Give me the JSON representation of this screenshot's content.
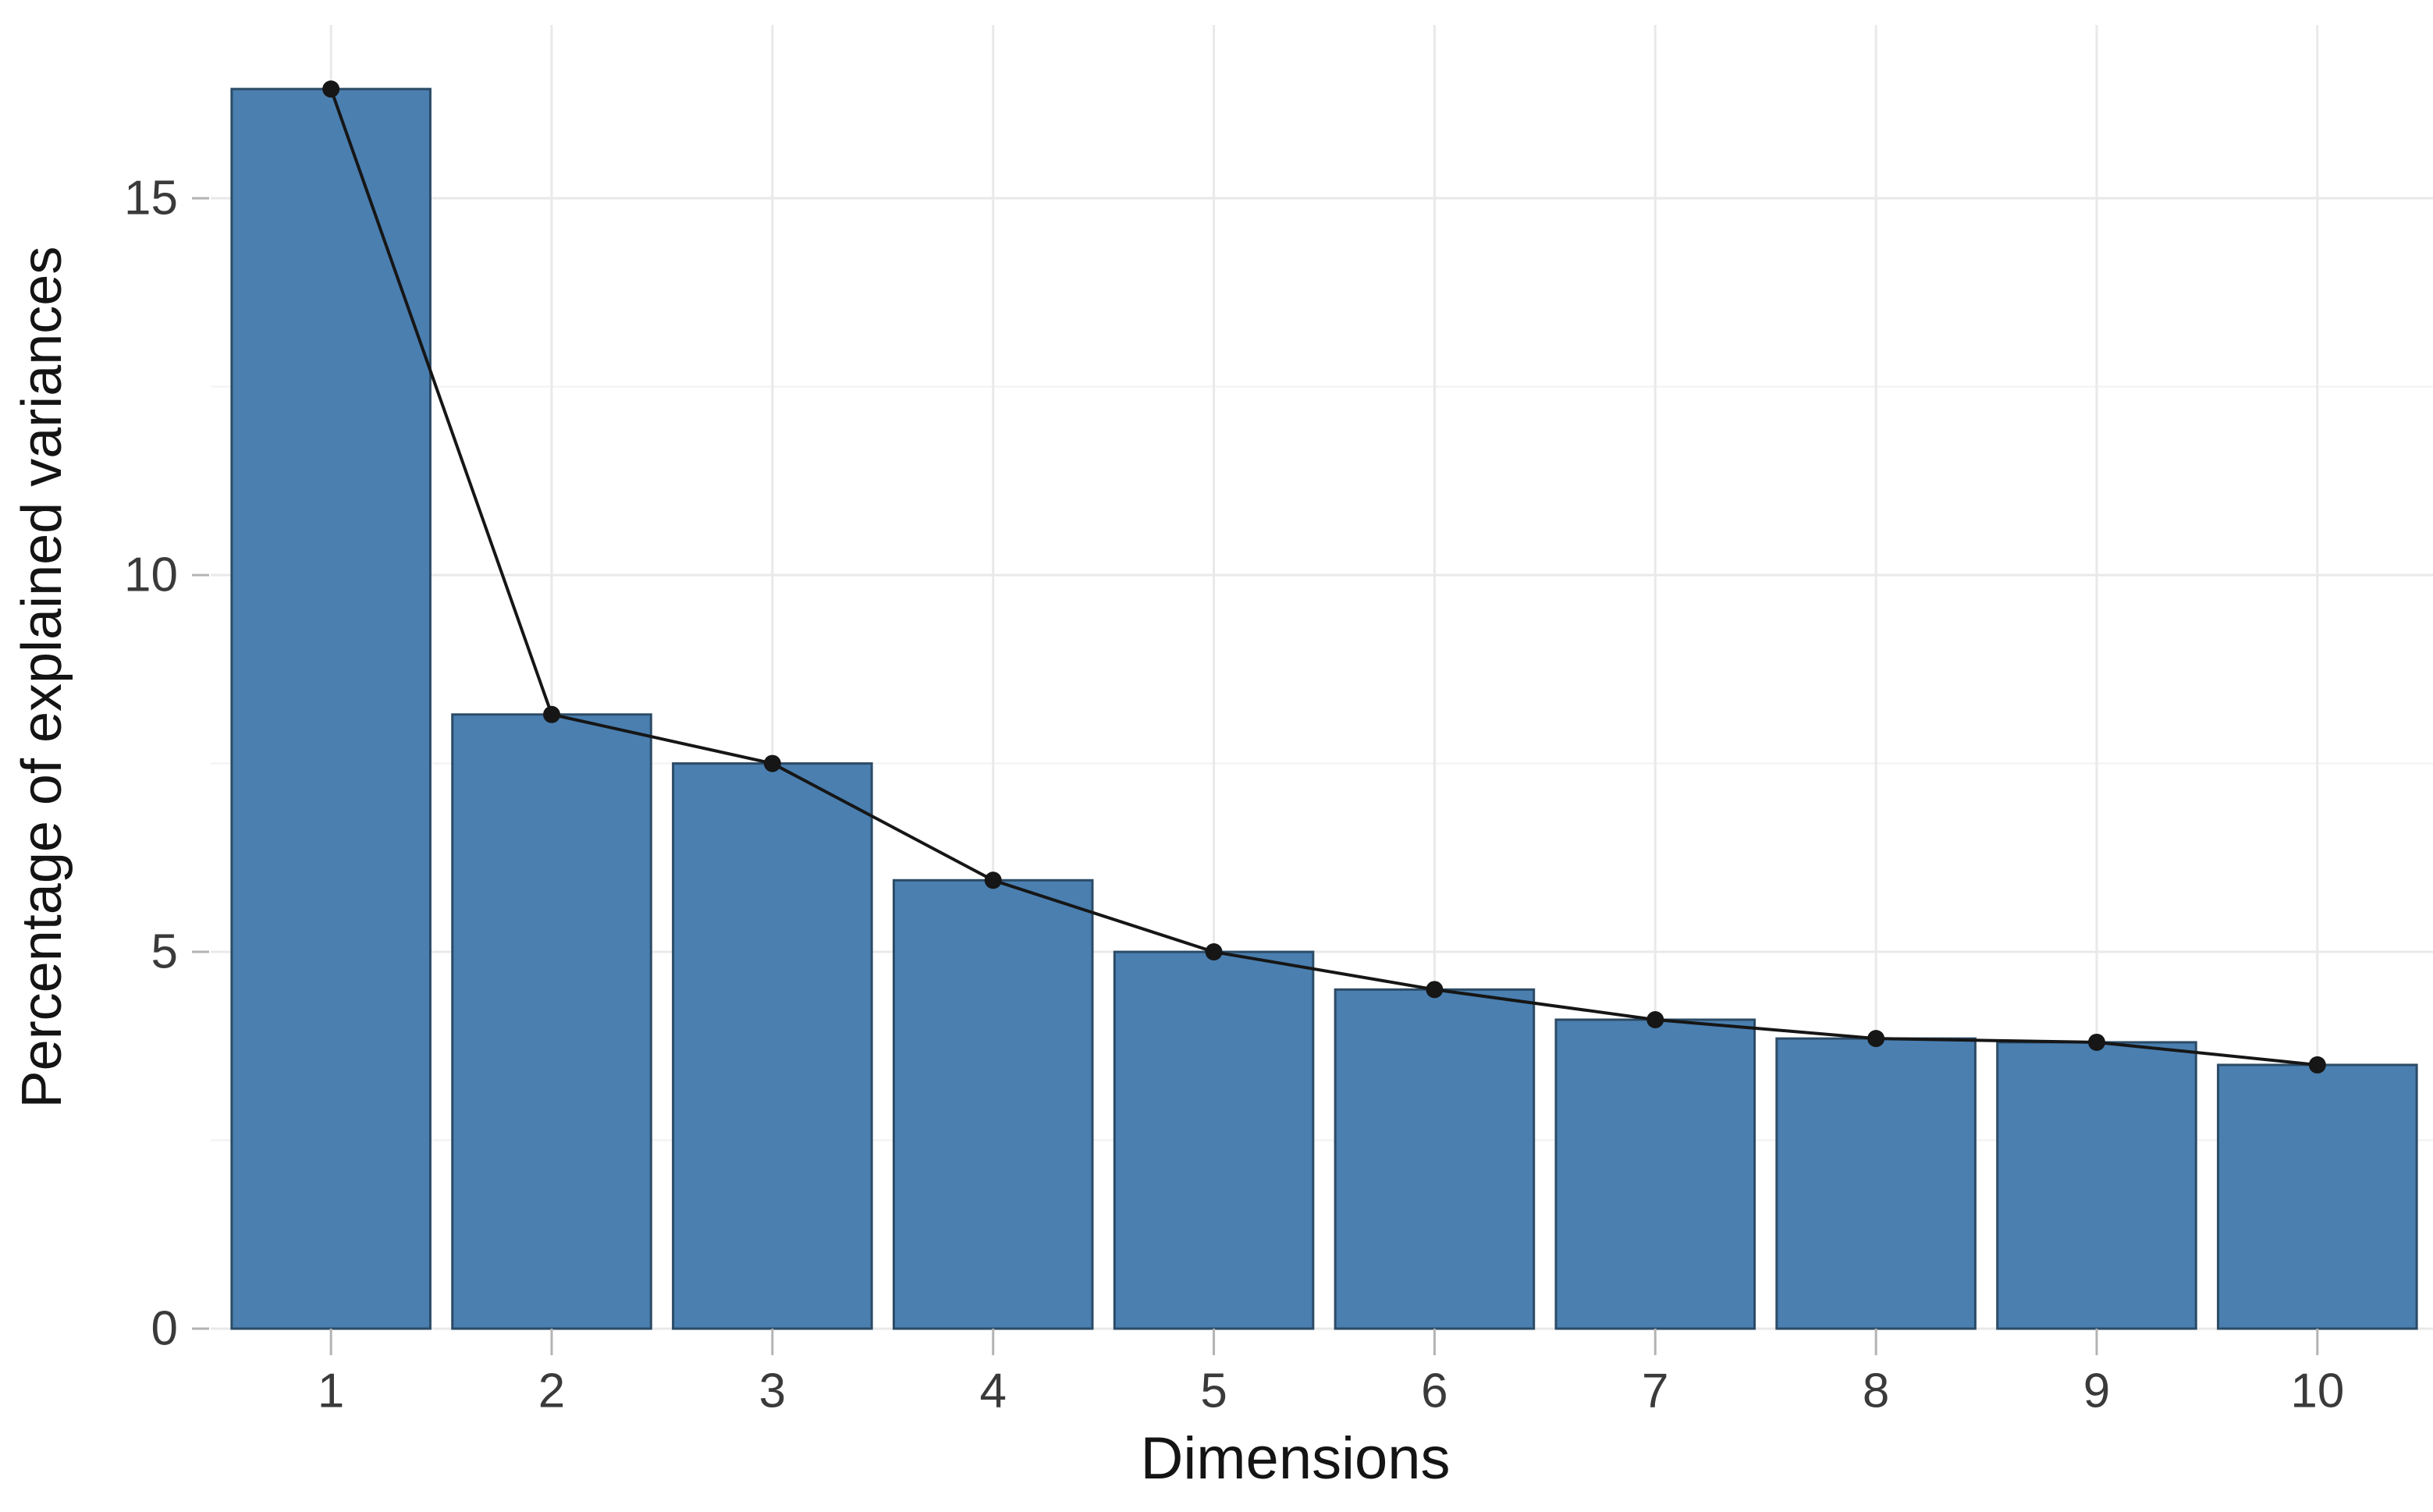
{
  "chart_data": {
    "type": "bar",
    "overlay": "line-with-points",
    "title": "",
    "xlabel": "Dimensions",
    "ylabel": "Percentage of explained variances",
    "categories": [
      "1",
      "2",
      "3",
      "4",
      "5",
      "6",
      "7",
      "8",
      "9",
      "10"
    ],
    "values": [
      16.45,
      8.15,
      7.5,
      5.95,
      5.0,
      4.5,
      4.1,
      3.85,
      3.8,
      3.5
    ],
    "series": [
      {
        "name": "explained-variance-bars",
        "values": [
          16.45,
          8.15,
          7.5,
          5.95,
          5.0,
          4.5,
          4.1,
          3.85,
          3.8,
          3.5
        ]
      },
      {
        "name": "scree-line",
        "values": [
          16.45,
          8.15,
          7.5,
          5.95,
          5.0,
          4.5,
          4.1,
          3.85,
          3.8,
          3.5
        ]
      }
    ],
    "ylim": [
      0,
      17.3
    ],
    "yticks": [
      0,
      5,
      10,
      15
    ],
    "yticks_minor": [
      2.5,
      7.5,
      12.5
    ],
    "grid": true,
    "legend": "none",
    "colors": {
      "bar_fill": "#4a7fb0",
      "bar_border": "#2c4b66",
      "line": "#161616",
      "point": "#161616",
      "grid_major": "#e9e9e9",
      "grid_minor": "#f4f4f4",
      "tick_mark": "#b3b3b3",
      "tick_text": "#3a3a3a",
      "axis_title_text": "#141414",
      "background": "#ffffff"
    }
  }
}
